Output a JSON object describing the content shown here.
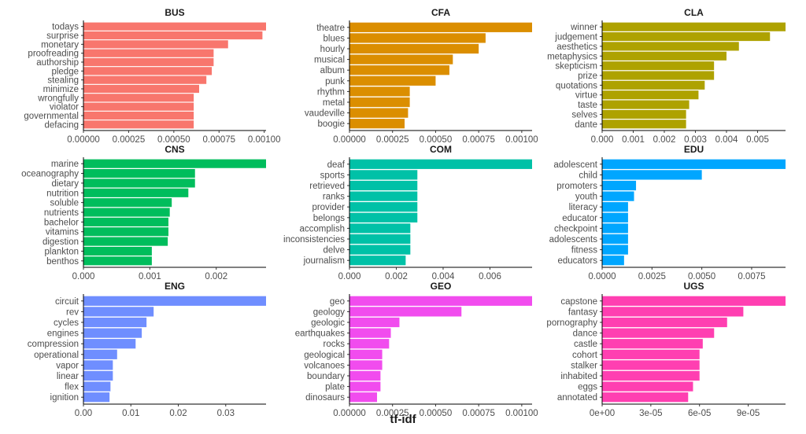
{
  "x_axis_label": "tf-idf",
  "chart_data": [
    {
      "type": "bar",
      "title": "BUS",
      "color": "#F8766D",
      "xlim": [
        0,
        0.00101
      ],
      "categories": [
        "todays",
        "surprise",
        "monetary",
        "proofreading",
        "authorship",
        "pledge",
        "stealing",
        "minimize",
        "wrongfully",
        "violator",
        "governmental",
        "defacing"
      ],
      "values": [
        0.00101,
        0.00099,
        0.0008,
        0.00072,
        0.00072,
        0.00071,
        0.00068,
        0.00064,
        0.00061,
        0.00061,
        0.00061,
        0.00061
      ],
      "ticks": [
        0,
        0.00025,
        0.0005,
        0.00075,
        0.001
      ],
      "tick_labels": [
        "0.00000",
        "0.00025",
        "0.00050",
        "0.00075",
        "0.00100"
      ]
    },
    {
      "type": "bar",
      "title": "CFA",
      "color": "#DB8E00",
      "xlim": [
        0,
        0.00106
      ],
      "categories": [
        "theatre",
        "blues",
        "hourly",
        "musical",
        "album",
        "punk",
        "rhythm",
        "metal",
        "vaudeville",
        "boogie"
      ],
      "values": [
        0.00106,
        0.00079,
        0.00075,
        0.0006,
        0.00058,
        0.0005,
        0.00035,
        0.00035,
        0.00034,
        0.00032
      ],
      "ticks": [
        0,
        0.00025,
        0.0005,
        0.00075,
        0.001
      ],
      "tick_labels": [
        "0.00000",
        "0.00025",
        "0.00050",
        "0.00075",
        "0.00100"
      ]
    },
    {
      "type": "bar",
      "title": "CLA",
      "color": "#AEA200",
      "xlim": [
        0,
        0.0059
      ],
      "categories": [
        "winner",
        "judgement",
        "aesthetics",
        "metaphysics",
        "skepticism",
        "prize",
        "quotations",
        "virtue",
        "taste",
        "selves",
        "dante"
      ],
      "values": [
        0.0059,
        0.0054,
        0.0044,
        0.004,
        0.0036,
        0.0036,
        0.0033,
        0.0031,
        0.0028,
        0.0027,
        0.0027
      ],
      "ticks": [
        0,
        0.001,
        0.002,
        0.003,
        0.004,
        0.005
      ],
      "tick_labels": [
        "0.000",
        "0.001",
        "0.002",
        "0.003",
        "0.004",
        "0.005"
      ]
    },
    {
      "type": "bar",
      "title": "CNS",
      "color": "#00BD5C",
      "xlim": [
        0,
        0.00275
      ],
      "categories": [
        "marine",
        "oceanography",
        "dietary",
        "nutrition",
        "soluble",
        "nutrients",
        "bachelor",
        "vitamins",
        "digestion",
        "plankton",
        "benthos"
      ],
      "values": [
        0.00275,
        0.00168,
        0.00168,
        0.00158,
        0.00133,
        0.0013,
        0.00128,
        0.00128,
        0.00127,
        0.00103,
        0.00103
      ],
      "ticks": [
        0,
        0.001,
        0.002
      ],
      "tick_labels": [
        "0.000",
        "0.001",
        "0.002"
      ]
    },
    {
      "type": "bar",
      "title": "COM",
      "color": "#00C1A7",
      "xlim": [
        0,
        0.0078
      ],
      "categories": [
        "deaf",
        "sports",
        "retrieved",
        "ranks",
        "provider",
        "belongs",
        "accomplish",
        "inconsistencies",
        "delve",
        "journalism"
      ],
      "values": [
        0.0078,
        0.0029,
        0.0029,
        0.0029,
        0.0029,
        0.0029,
        0.0026,
        0.0026,
        0.0026,
        0.0024
      ],
      "ticks": [
        0,
        0.002,
        0.004,
        0.006
      ],
      "tick_labels": [
        "0.000",
        "0.002",
        "0.004",
        "0.006"
      ]
    },
    {
      "type": "bar",
      "title": "EDU",
      "color": "#00A6FF",
      "xlim": [
        0,
        0.0092
      ],
      "categories": [
        "adolescent",
        "child",
        "promoters",
        "youth",
        "literacy",
        "educator",
        "checkpoint",
        "adolescents",
        "fitness",
        "educators"
      ],
      "values": [
        0.0092,
        0.005,
        0.0017,
        0.0016,
        0.0013,
        0.0013,
        0.0013,
        0.0013,
        0.0013,
        0.0011
      ],
      "ticks": [
        0,
        0.0025,
        0.005,
        0.0075
      ],
      "tick_labels": [
        "0.0000",
        "0.0025",
        "0.0050",
        "0.0075"
      ]
    },
    {
      "type": "bar",
      "title": "ENG",
      "color": "#6F8EFF",
      "xlim": [
        0,
        0.0385
      ],
      "categories": [
        "circuit",
        "rev",
        "cycles",
        "engines",
        "compression",
        "operational",
        "vapor",
        "linear",
        "flex",
        "ignition"
      ],
      "values": [
        0.0385,
        0.0148,
        0.0133,
        0.0123,
        0.011,
        0.0071,
        0.0062,
        0.0062,
        0.0057,
        0.0055
      ],
      "ticks": [
        0,
        0.01,
        0.02,
        0.03
      ],
      "tick_labels": [
        "0.00",
        "0.01",
        "0.02",
        "0.03"
      ]
    },
    {
      "type": "bar",
      "title": "GEO",
      "color": "#F14CEE",
      "xlim": [
        0,
        0.00106
      ],
      "categories": [
        "geo",
        "geology",
        "geologic",
        "earthquakes",
        "rocks",
        "geological",
        "volcanoes",
        "boundary",
        "plate",
        "dinosaurs"
      ],
      "values": [
        0.00106,
        0.00065,
        0.00029,
        0.00024,
        0.00023,
        0.00019,
        0.00019,
        0.00018,
        0.00018,
        0.00016
      ],
      "ticks": [
        0,
        0.00025,
        0.0005,
        0.00075,
        0.001
      ],
      "tick_labels": [
        "0.00000",
        "0.00025",
        "0.00050",
        "0.00075",
        "0.00100"
      ]
    },
    {
      "type": "bar",
      "title": "UGS",
      "color": "#FF3FB1",
      "xlim": [
        0,
        0.000113
      ],
      "categories": [
        "capstone",
        "fantasy",
        "pornography",
        "dance",
        "castle",
        "cohort",
        "stalker",
        "inhabited",
        "eggs",
        "annotated"
      ],
      "values": [
        0.000113,
        8.7e-05,
        7.7e-05,
        6.9e-05,
        6.2e-05,
        6e-05,
        6e-05,
        6e-05,
        5.6e-05,
        5.3e-05
      ],
      "ticks": [
        0,
        3e-05,
        6e-05,
        9e-05
      ],
      "tick_labels": [
        "0e+00",
        "3e-05",
        "6e-05",
        "9e-05"
      ]
    }
  ]
}
